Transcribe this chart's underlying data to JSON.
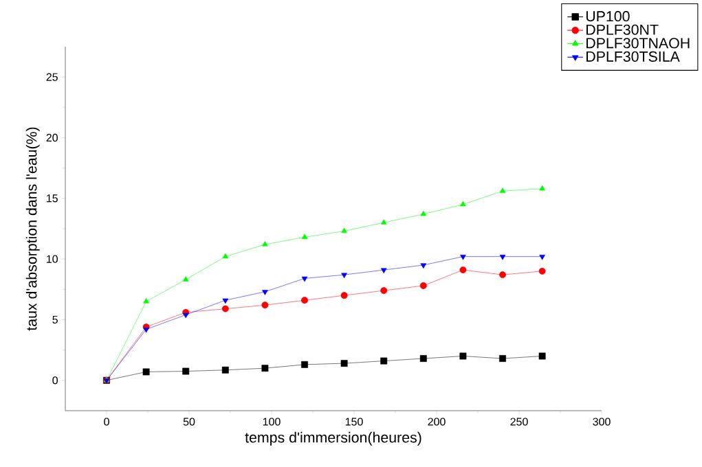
{
  "chart_data": {
    "type": "line",
    "xlabel": "temps d'immersion(heures)",
    "ylabel": "taux d'absorption dans l'eau(%)",
    "x": [
      0,
      24,
      48,
      72,
      96,
      120,
      144,
      168,
      192,
      216,
      240,
      264
    ],
    "series": [
      {
        "name": "UP100",
        "color": "#000000",
        "marker": "square",
        "values": [
          0,
          0.7,
          0.75,
          0.85,
          1.0,
          1.3,
          1.4,
          1.6,
          1.8,
          2.0,
          1.8,
          2.0
        ]
      },
      {
        "name": "DPLF30NT",
        "color": "#ff0000",
        "marker": "circle",
        "values": [
          0,
          4.4,
          5.6,
          5.9,
          6.2,
          6.6,
          7.0,
          7.4,
          7.8,
          9.1,
          8.7,
          9.0
        ]
      },
      {
        "name": "DPLF30TNAOH",
        "color": "#00ff00",
        "marker": "triangle",
        "values": [
          0,
          6.5,
          8.3,
          10.2,
          11.2,
          11.8,
          12.3,
          13.0,
          13.7,
          14.5,
          15.6,
          15.8
        ]
      },
      {
        "name": "DPLF30TSILA",
        "color": "#0000ff",
        "marker": "triangle-down",
        "values": [
          0,
          4.2,
          5.4,
          6.6,
          7.3,
          8.4,
          8.7,
          9.1,
          9.5,
          10.2,
          10.2,
          10.2
        ]
      }
    ],
    "xlim": [
      -25,
      300
    ],
    "ylim": [
      -2.5,
      27.5
    ],
    "xticks": [
      0,
      50,
      100,
      150,
      200,
      250,
      300
    ],
    "yticks": [
      0,
      5,
      10,
      15,
      20,
      25
    ],
    "grid": false,
    "legend": "top right",
    "line_style": "solid"
  }
}
